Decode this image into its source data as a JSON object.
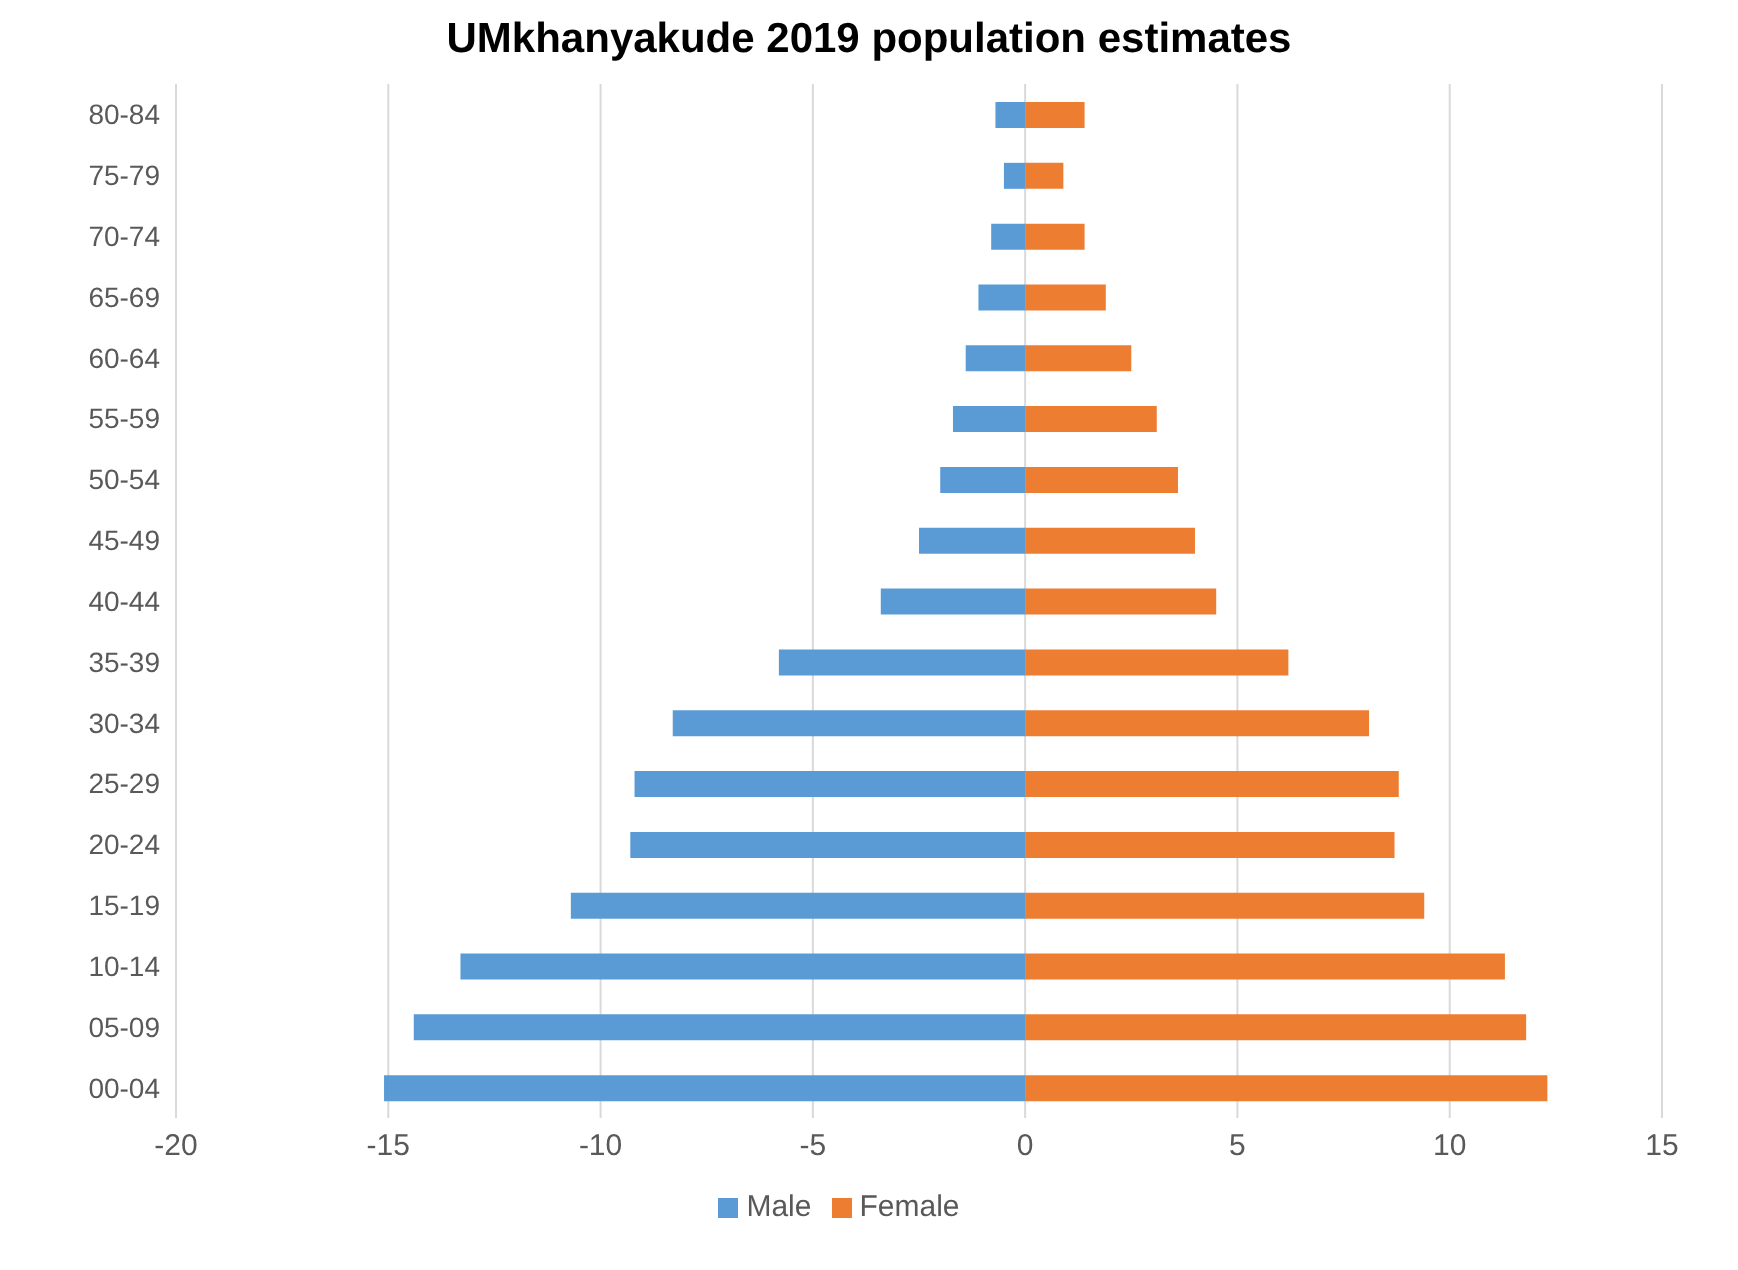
{
  "chart_data": {
    "type": "bar",
    "title": "UMkhanyakude 2019 population estimates",
    "orientation": "horizontal",
    "stacked": true,
    "categories": [
      "80-84",
      "75-79",
      "70-74",
      "65-69",
      "60-64",
      "55-59",
      "50-54",
      "45-49",
      "40-44",
      "35-39",
      "30-34",
      "25-29",
      "20-24",
      "15-19",
      "10-14",
      "05-09",
      "00-04"
    ],
    "series": [
      {
        "name": "Male",
        "color": "#5b9bd5",
        "values": [
          -0.7,
          -0.5,
          -0.8,
          -1.1,
          -1.4,
          -1.7,
          -2.0,
          -2.5,
          -3.4,
          -5.8,
          -8.3,
          -9.2,
          -9.3,
          -10.7,
          -13.3,
          -14.4,
          -15.1
        ]
      },
      {
        "name": "Female",
        "color": "#ed7d31",
        "values": [
          1.4,
          0.9,
          1.4,
          1.9,
          2.5,
          3.1,
          3.6,
          4.0,
          4.5,
          6.2,
          8.1,
          8.8,
          8.7,
          9.4,
          11.3,
          11.8,
          12.3
        ]
      }
    ],
    "xlim": [
      -20,
      15
    ],
    "xticks": [
      -20,
      -15,
      -10,
      -5,
      0,
      5,
      10,
      15
    ],
    "grid": "x",
    "legend": "bottom"
  }
}
